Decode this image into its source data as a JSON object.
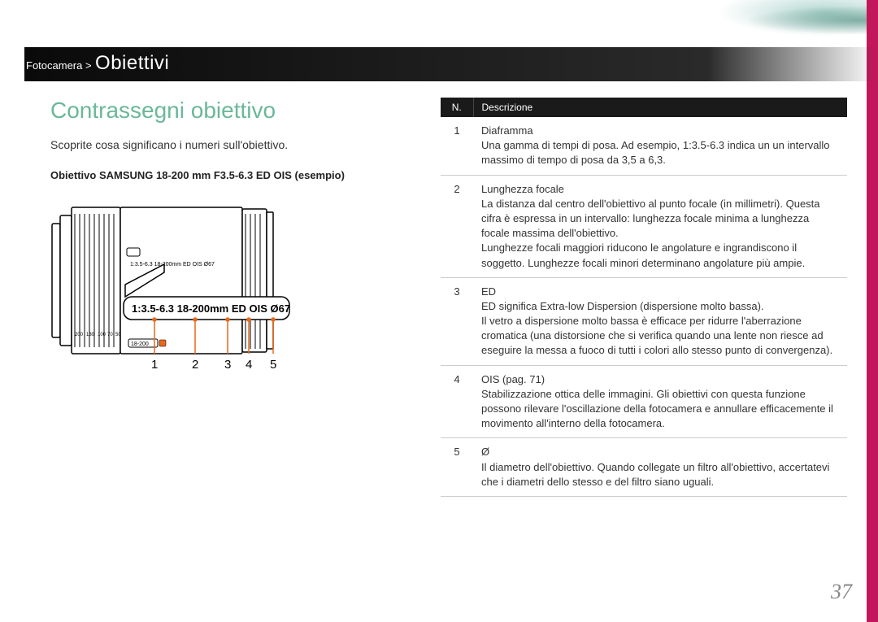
{
  "breadcrumb": {
    "parent": "Fotocamera >",
    "current": "Obiettivi"
  },
  "heading": "Contrassegni obiettivo",
  "intro": "Scoprite cosa significano i numeri sull'obiettivo.",
  "subheading": "Obiettivo SAMSUNG 18-200 mm F3.5-6.3 ED OIS (esempio)",
  "lens_callout": {
    "text": "1:3.5-6.3 18-200mm ED OIS Ø67",
    "barrel_text": "1:3.5-6.3 18-200mm ED OIS Ø67",
    "zoom_marks": [
      "200",
      "130",
      "100",
      "70",
      "50"
    ],
    "ring_label": "18-200",
    "pointer_labels": [
      "1",
      "2",
      "3",
      "4",
      "5"
    ],
    "pointer_color": "#e8691b",
    "outline_color": "#000000"
  },
  "table": {
    "headers": {
      "num": "N.",
      "desc": "Descrizione"
    },
    "rows": [
      {
        "n": "1",
        "title": "Diaframma",
        "body": "Una gamma di tempi di posa. Ad esempio, 1:3.5-6.3 indica un un intervallo massimo di tempo di posa da 3,5 a 6,3."
      },
      {
        "n": "2",
        "title": "Lunghezza focale",
        "body": "La distanza dal centro dell'obiettivo al punto focale (in millimetri). Questa cifra è espressa in un intervallo: lunghezza focale minima a lunghezza focale massima dell'obiettivo.\nLunghezze focali maggiori riducono le angolature e ingrandiscono il soggetto. Lunghezze focali minori determinano angolature più ampie."
      },
      {
        "n": "3",
        "title": "ED",
        "body": "ED significa Extra-low Dispersion (dispersione molto bassa).\nIl vetro a dispersione molto bassa è efficace per ridurre l'aberrazione cromatica (una distorsione che si verifica quando una lente non riesce ad eseguire la messa a fuoco di tutti i colori allo stesso punto di convergenza)."
      },
      {
        "n": "4",
        "title": "OIS (pag. 71)",
        "body": "Stabilizzazione ottica delle immagini. Gli obiettivi con questa funzione possono rilevare l'oscillazione della fotocamera e annullare efficacemente il movimento all'interno della fotocamera."
      },
      {
        "n": "5",
        "title": "Ø",
        "body": "Il diametro dell'obiettivo. Quando collegate un filtro all'obiettivo, accertatevi che i diametri dello stesso e del filtro siano uguali."
      }
    ]
  },
  "page_number": "37",
  "colors": {
    "heading": "#6ab89a",
    "accent_bar": "#c2185b",
    "table_header_bg": "#1a1a1a",
    "pointer": "#e8691b"
  }
}
